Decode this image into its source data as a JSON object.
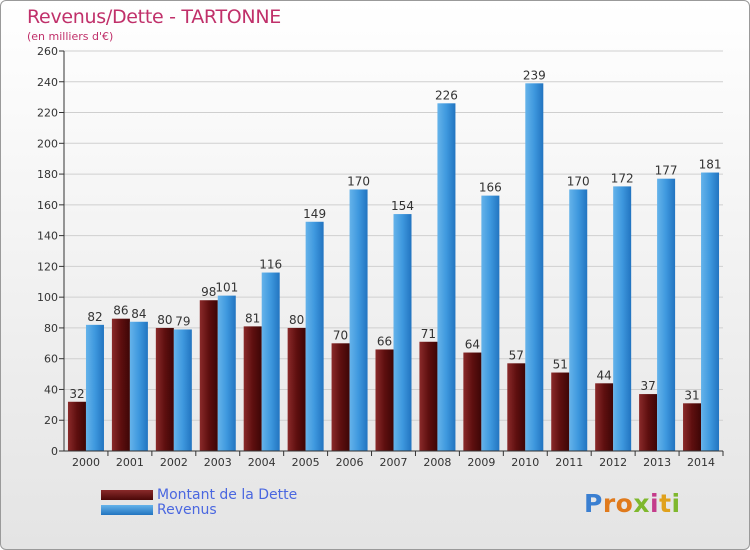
{
  "title": "Revenus/Dette - TARTONNE",
  "subtitle": "(en milliers d'€)",
  "colors": {
    "debt": "#6b1616",
    "revenue": "#3d97dd",
    "title": "#c0306a",
    "legend_text": "#4a67e0"
  },
  "legend": {
    "debt": "Montant de la Dette",
    "revenue": "Revenus"
  },
  "logo": "Proxiti",
  "chart_data": {
    "type": "bar",
    "title": "Revenus/Dette - TARTONNE",
    "ylabel": "(en milliers d'€)",
    "ylim": [
      0,
      260
    ],
    "yticks": [
      0,
      20,
      40,
      60,
      80,
      100,
      120,
      140,
      160,
      180,
      200,
      220,
      240,
      260
    ],
    "grid": true,
    "categories": [
      "2000",
      "2001",
      "2002",
      "2003",
      "2004",
      "2005",
      "2006",
      "2007",
      "2008",
      "2009",
      "2010",
      "2011",
      "2012",
      "2013",
      "2014"
    ],
    "series": [
      {
        "name": "Montant de la Dette",
        "values": [
          32,
          86,
          80,
          98,
          81,
          80,
          70,
          66,
          71,
          64,
          57,
          51,
          44,
          37,
          31
        ]
      },
      {
        "name": "Revenus",
        "values": [
          82,
          84,
          79,
          101,
          116,
          149,
          170,
          154,
          226,
          166,
          239,
          170,
          172,
          177,
          181
        ]
      }
    ]
  }
}
